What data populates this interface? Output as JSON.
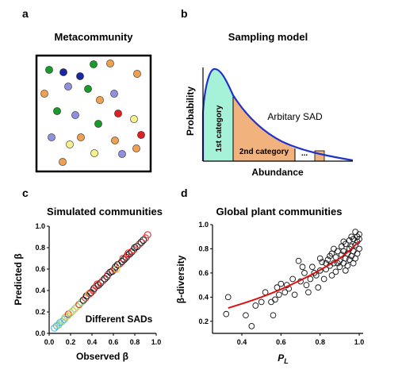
{
  "panels": {
    "a": {
      "label": "a",
      "title": "Metacommunity",
      "individuals": [
        {
          "x": 62,
          "y": 88,
          "color": "#1a9a2a"
        },
        {
          "x": 80,
          "y": 91,
          "color": "#1a27a0"
        },
        {
          "x": 101,
          "y": 96,
          "color": "#1a27a0"
        },
        {
          "x": 118,
          "y": 81,
          "color": "#1a9a2a"
        },
        {
          "x": 139,
          "y": 80,
          "color": "#f0a050"
        },
        {
          "x": 173,
          "y": 93,
          "color": "#f0a050"
        },
        {
          "x": 86,
          "y": 109,
          "color": "#9090e0"
        },
        {
          "x": 111,
          "y": 112,
          "color": "#1a9a2a"
        },
        {
          "x": 56,
          "y": 118,
          "color": "#f0a050"
        },
        {
          "x": 126,
          "y": 126,
          "color": "#f0a050"
        },
        {
          "x": 144,
          "y": 118,
          "color": "#9090e0"
        },
        {
          "x": 72,
          "y": 140,
          "color": "#1a9a2a"
        },
        {
          "x": 95,
          "y": 145,
          "color": "#9090e0"
        },
        {
          "x": 149,
          "y": 143,
          "color": "#dd2020"
        },
        {
          "x": 124,
          "y": 156,
          "color": "#1a9a2a"
        },
        {
          "x": 169,
          "y": 150,
          "color": "#f5f090"
        },
        {
          "x": 65,
          "y": 173,
          "color": "#9090e0"
        },
        {
          "x": 102,
          "y": 173,
          "color": "#f0a050"
        },
        {
          "x": 88,
          "y": 182,
          "color": "#f5f090"
        },
        {
          "x": 145,
          "y": 177,
          "color": "#f0a050"
        },
        {
          "x": 178,
          "y": 170,
          "color": "#dd2020"
        },
        {
          "x": 119,
          "y": 193,
          "color": "#f5f090"
        },
        {
          "x": 154,
          "y": 194,
          "color": "#9090e0"
        },
        {
          "x": 79,
          "y": 204,
          "color": "#f0a050"
        },
        {
          "x": 172,
          "y": 187,
          "color": "#f0a050"
        }
      ]
    },
    "b": {
      "label": "b",
      "title": "Sampling model",
      "ylabel": "Probability",
      "xlabel": "Abundance",
      "curve_label": "Arbitary SAD",
      "first_category": "1st category",
      "second_category": "2nd category",
      "ellipsis": "...",
      "colors": {
        "first": "#a6f2d8",
        "second": "#f2b27e",
        "curve": "#2233cc"
      }
    },
    "c": {
      "label": "c",
      "title": "Simulated communities",
      "xlabel": "Observed β",
      "ylabel": "Predicted β",
      "annotation": "Different SADs",
      "xticks": [
        "0.0",
        "0.2",
        "0.4",
        "0.6",
        "0.8",
        "1.0"
      ],
      "yticks": [
        "0.0",
        "0.2",
        "0.4",
        "0.6",
        "0.8",
        "1.0"
      ]
    },
    "d": {
      "label": "d",
      "title": "Global plant communities",
      "xlabel": "P",
      "xlabel_sub": "L",
      "ylabel": "β-diversity",
      "xticks": [
        "0.4",
        "0.6",
        "0.8",
        "1.0"
      ],
      "yticks": [
        "0.2",
        "0.4",
        "0.6",
        "0.8",
        "1.0"
      ]
    }
  },
  "chart_data": [
    {
      "type": "scatter",
      "panel": "c",
      "xlim": [
        0,
        1.0
      ],
      "ylim": [
        0,
        1.0
      ],
      "series_colors": [
        "#4ab0e0",
        "#8fd080",
        "#e6c040",
        "#202020",
        "#e03030"
      ],
      "points": [
        {
          "x": 0.05,
          "y": 0.05,
          "c": 0
        },
        {
          "x": 0.07,
          "y": 0.07,
          "c": 0
        },
        {
          "x": 0.09,
          "y": 0.08,
          "c": 1
        },
        {
          "x": 0.1,
          "y": 0.1,
          "c": 0
        },
        {
          "x": 0.12,
          "y": 0.11,
          "c": 1
        },
        {
          "x": 0.14,
          "y": 0.13,
          "c": 0
        },
        {
          "x": 0.15,
          "y": 0.15,
          "c": 1
        },
        {
          "x": 0.17,
          "y": 0.16,
          "c": 2
        },
        {
          "x": 0.18,
          "y": 0.18,
          "c": 4
        },
        {
          "x": 0.2,
          "y": 0.19,
          "c": 1
        },
        {
          "x": 0.22,
          "y": 0.21,
          "c": 2
        },
        {
          "x": 0.24,
          "y": 0.23,
          "c": 1
        },
        {
          "x": 0.26,
          "y": 0.25,
          "c": 2
        },
        {
          "x": 0.28,
          "y": 0.27,
          "c": 4
        },
        {
          "x": 0.3,
          "y": 0.29,
          "c": 1
        },
        {
          "x": 0.32,
          "y": 0.31,
          "c": 3
        },
        {
          "x": 0.34,
          "y": 0.33,
          "c": 4
        },
        {
          "x": 0.35,
          "y": 0.35,
          "c": 3
        },
        {
          "x": 0.37,
          "y": 0.37,
          "c": 2
        },
        {
          "x": 0.39,
          "y": 0.38,
          "c": 3
        },
        {
          "x": 0.41,
          "y": 0.4,
          "c": 4
        },
        {
          "x": 0.42,
          "y": 0.42,
          "c": 3
        },
        {
          "x": 0.44,
          "y": 0.44,
          "c": 4
        },
        {
          "x": 0.46,
          "y": 0.45,
          "c": 3
        },
        {
          "x": 0.48,
          "y": 0.47,
          "c": 3
        },
        {
          "x": 0.5,
          "y": 0.49,
          "c": 4
        },
        {
          "x": 0.52,
          "y": 0.51,
          "c": 3
        },
        {
          "x": 0.54,
          "y": 0.53,
          "c": 3
        },
        {
          "x": 0.55,
          "y": 0.55,
          "c": 4
        },
        {
          "x": 0.57,
          "y": 0.57,
          "c": 3
        },
        {
          "x": 0.59,
          "y": 0.58,
          "c": 3
        },
        {
          "x": 0.61,
          "y": 0.6,
          "c": 4
        },
        {
          "x": 0.62,
          "y": 0.62,
          "c": 3
        },
        {
          "x": 0.64,
          "y": 0.64,
          "c": 3
        },
        {
          "x": 0.66,
          "y": 0.65,
          "c": 4
        },
        {
          "x": 0.68,
          "y": 0.67,
          "c": 3
        },
        {
          "x": 0.7,
          "y": 0.69,
          "c": 3
        },
        {
          "x": 0.72,
          "y": 0.71,
          "c": 3
        },
        {
          "x": 0.73,
          "y": 0.73,
          "c": 4
        },
        {
          "x": 0.75,
          "y": 0.74,
          "c": 3
        },
        {
          "x": 0.77,
          "y": 0.76,
          "c": 3
        },
        {
          "x": 0.79,
          "y": 0.78,
          "c": 4
        },
        {
          "x": 0.8,
          "y": 0.8,
          "c": 3
        },
        {
          "x": 0.82,
          "y": 0.81,
          "c": 3
        },
        {
          "x": 0.84,
          "y": 0.83,
          "c": 4
        },
        {
          "x": 0.86,
          "y": 0.85,
          "c": 3
        },
        {
          "x": 0.88,
          "y": 0.87,
          "c": 3
        },
        {
          "x": 0.9,
          "y": 0.89,
          "c": 4
        },
        {
          "x": 0.92,
          "y": 0.92,
          "c": 4
        },
        {
          "x": 0.63,
          "y": 0.6,
          "c": 2
        },
        {
          "x": 0.45,
          "y": 0.46,
          "c": 4
        },
        {
          "x": 0.38,
          "y": 0.37,
          "c": 4
        },
        {
          "x": 0.69,
          "y": 0.7,
          "c": 4
        },
        {
          "x": 0.74,
          "y": 0.75,
          "c": 4
        }
      ]
    },
    {
      "type": "scatter",
      "panel": "d",
      "xlim": [
        0.25,
        1.02
      ],
      "ylim": [
        0.1,
        1.0
      ],
      "points": [
        {
          "x": 0.33,
          "y": 0.4
        },
        {
          "x": 0.32,
          "y": 0.26
        },
        {
          "x": 0.42,
          "y": 0.25
        },
        {
          "x": 0.45,
          "y": 0.16
        },
        {
          "x": 0.47,
          "y": 0.33
        },
        {
          "x": 0.5,
          "y": 0.36
        },
        {
          "x": 0.52,
          "y": 0.44
        },
        {
          "x": 0.55,
          "y": 0.36
        },
        {
          "x": 0.57,
          "y": 0.38
        },
        {
          "x": 0.6,
          "y": 0.51
        },
        {
          "x": 0.59,
          "y": 0.42
        },
        {
          "x": 0.56,
          "y": 0.25
        },
        {
          "x": 0.62,
          "y": 0.44
        },
        {
          "x": 0.64,
          "y": 0.47
        },
        {
          "x": 0.67,
          "y": 0.42
        },
        {
          "x": 0.69,
          "y": 0.7
        },
        {
          "x": 0.7,
          "y": 0.53
        },
        {
          "x": 0.72,
          "y": 0.6
        },
        {
          "x": 0.73,
          "y": 0.5
        },
        {
          "x": 0.74,
          "y": 0.44
        },
        {
          "x": 0.75,
          "y": 0.55
        },
        {
          "x": 0.76,
          "y": 0.65
        },
        {
          "x": 0.78,
          "y": 0.58
        },
        {
          "x": 0.79,
          "y": 0.48
        },
        {
          "x": 0.8,
          "y": 0.62
        },
        {
          "x": 0.81,
          "y": 0.69
        },
        {
          "x": 0.82,
          "y": 0.55
        },
        {
          "x": 0.83,
          "y": 0.63
        },
        {
          "x": 0.84,
          "y": 0.71
        },
        {
          "x": 0.85,
          "y": 0.66
        },
        {
          "x": 0.86,
          "y": 0.58
        },
        {
          "x": 0.86,
          "y": 0.76
        },
        {
          "x": 0.87,
          "y": 0.68
        },
        {
          "x": 0.88,
          "y": 0.73
        },
        {
          "x": 0.88,
          "y": 0.61
        },
        {
          "x": 0.89,
          "y": 0.78
        },
        {
          "x": 0.9,
          "y": 0.7
        },
        {
          "x": 0.9,
          "y": 0.65
        },
        {
          "x": 0.91,
          "y": 0.75
        },
        {
          "x": 0.91,
          "y": 0.82
        },
        {
          "x": 0.92,
          "y": 0.68
        },
        {
          "x": 0.92,
          "y": 0.78
        },
        {
          "x": 0.93,
          "y": 0.72
        },
        {
          "x": 0.93,
          "y": 0.84
        },
        {
          "x": 0.94,
          "y": 0.76
        },
        {
          "x": 0.94,
          "y": 0.66
        },
        {
          "x": 0.95,
          "y": 0.8
        },
        {
          "x": 0.95,
          "y": 0.87
        },
        {
          "x": 0.96,
          "y": 0.74
        },
        {
          "x": 0.96,
          "y": 0.82
        },
        {
          "x": 0.97,
          "y": 0.78
        },
        {
          "x": 0.97,
          "y": 0.88
        },
        {
          "x": 0.98,
          "y": 0.83
        },
        {
          "x": 0.98,
          "y": 0.72
        },
        {
          "x": 0.99,
          "y": 0.86
        },
        {
          "x": 0.99,
          "y": 0.9
        },
        {
          "x": 1.0,
          "y": 0.8
        },
        {
          "x": 1.0,
          "y": 0.88
        },
        {
          "x": 1.0,
          "y": 0.92
        },
        {
          "x": 0.99,
          "y": 0.76
        },
        {
          "x": 0.97,
          "y": 0.68
        },
        {
          "x": 0.95,
          "y": 0.71
        },
        {
          "x": 0.93,
          "y": 0.62
        },
        {
          "x": 0.89,
          "y": 0.68
        },
        {
          "x": 0.87,
          "y": 0.8
        },
        {
          "x": 0.85,
          "y": 0.74
        },
        {
          "x": 0.83,
          "y": 0.68
        },
        {
          "x": 0.8,
          "y": 0.72
        },
        {
          "x": 0.77,
          "y": 0.6
        },
        {
          "x": 0.71,
          "y": 0.65
        },
        {
          "x": 0.66,
          "y": 0.55
        },
        {
          "x": 0.63,
          "y": 0.5
        },
        {
          "x": 0.58,
          "y": 0.48
        },
        {
          "x": 0.96,
          "y": 0.9
        },
        {
          "x": 0.98,
          "y": 0.94
        },
        {
          "x": 0.92,
          "y": 0.86
        }
      ],
      "fit": [
        {
          "x": 0.33,
          "y": 0.31
        },
        {
          "x": 0.45,
          "y": 0.37
        },
        {
          "x": 0.55,
          "y": 0.43
        },
        {
          "x": 0.65,
          "y": 0.5
        },
        {
          "x": 0.75,
          "y": 0.58
        },
        {
          "x": 0.85,
          "y": 0.67
        },
        {
          "x": 0.92,
          "y": 0.74
        },
        {
          "x": 1.0,
          "y": 0.86
        }
      ]
    }
  ]
}
